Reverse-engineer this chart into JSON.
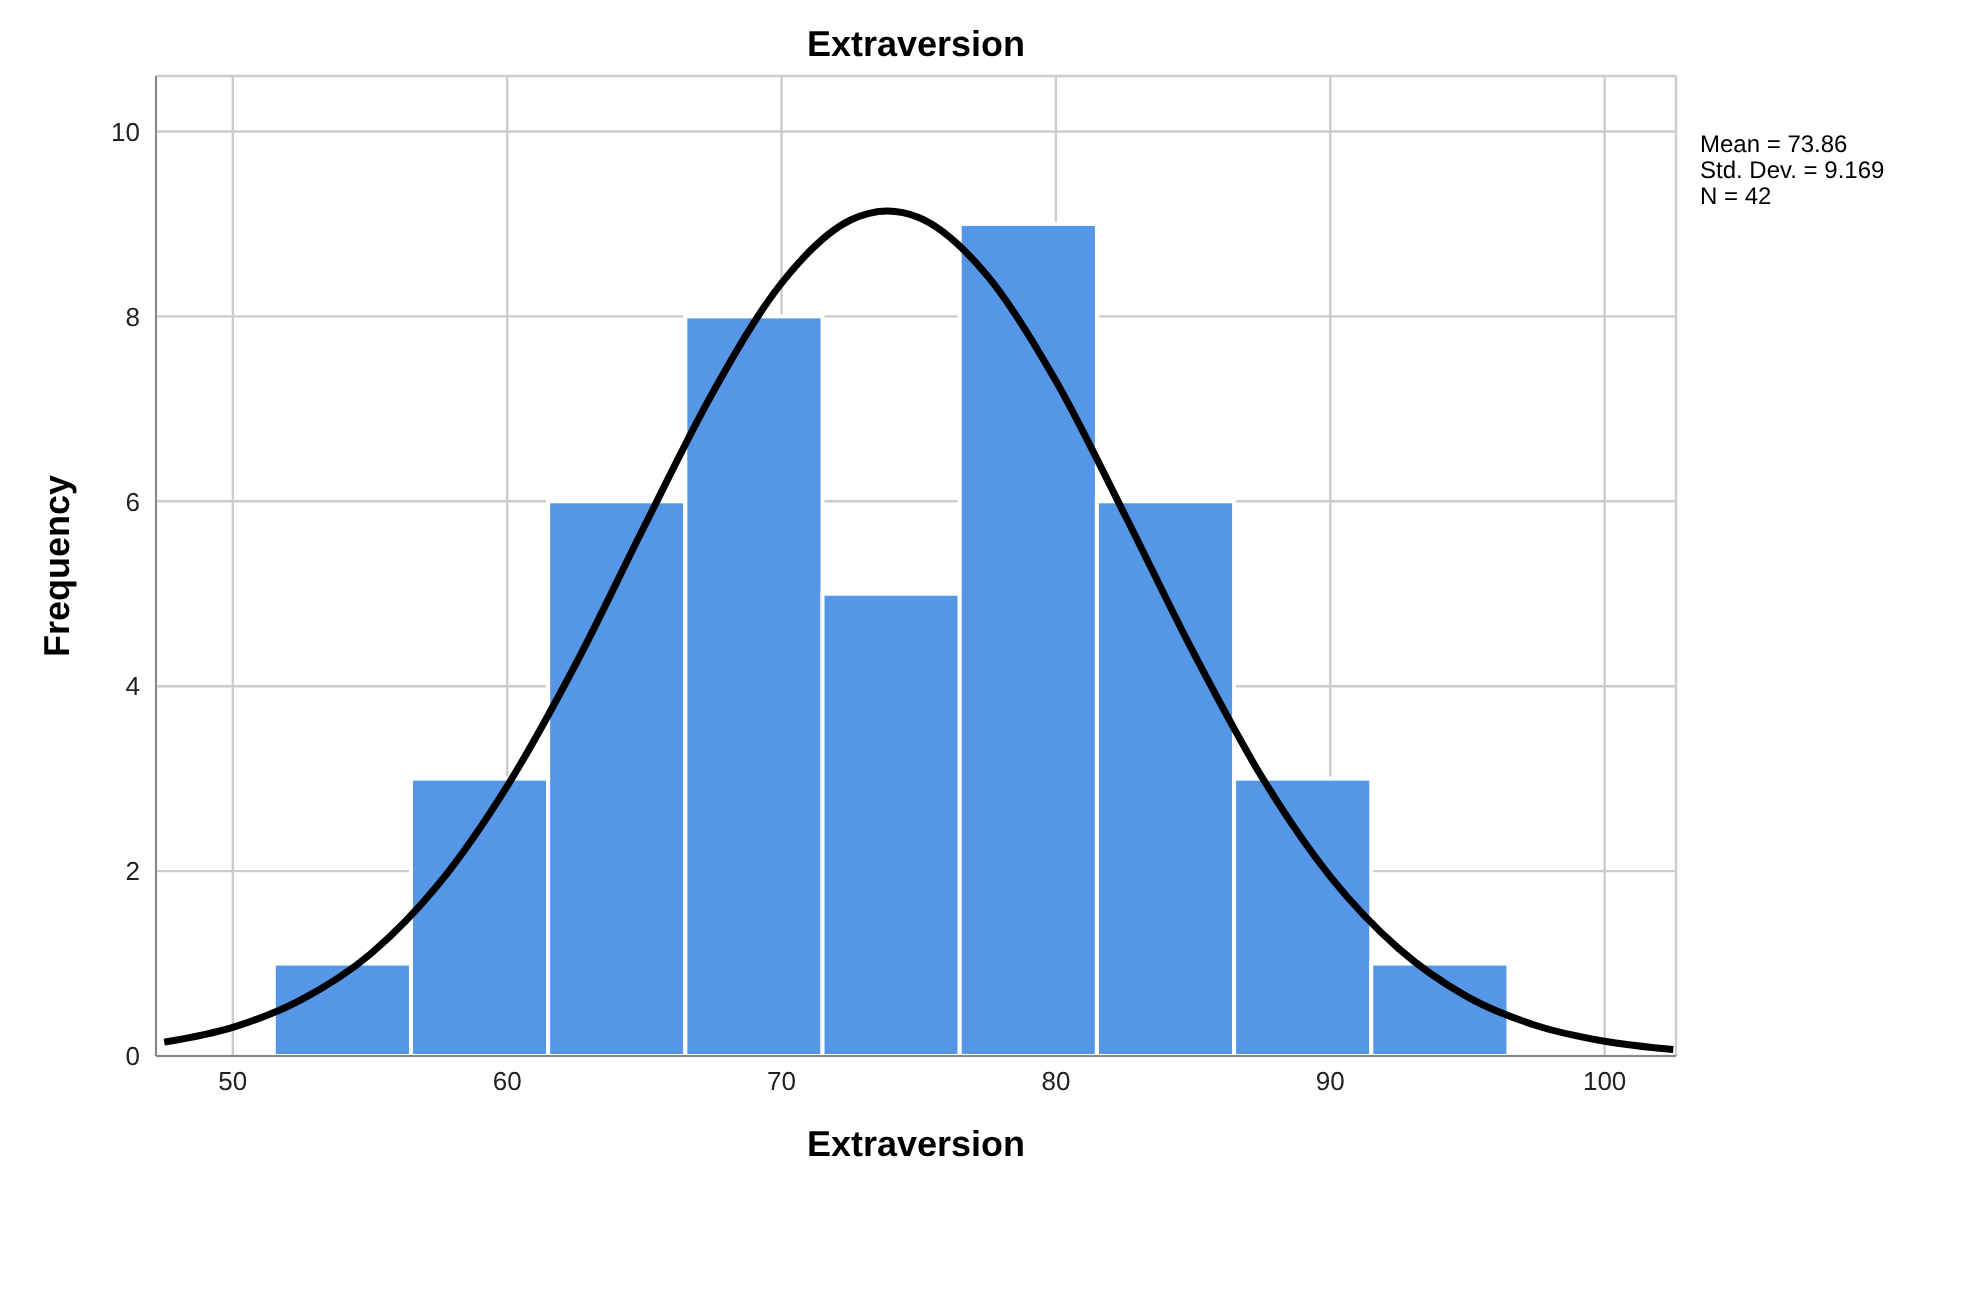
{
  "chart_data": {
    "type": "histogram",
    "title": "Extraversion",
    "xlabel": "Extraversion",
    "ylabel": "Frequency",
    "annotations": [
      "Mean = 73.86",
      "Std. Dev. = 9.169",
      "N = 42"
    ],
    "xlim": [
      47.2,
      102.6
    ],
    "xticks": [
      50,
      60,
      70,
      80,
      90,
      100
    ],
    "ylim": [
      0,
      10.6
    ],
    "yticks": [
      0,
      2,
      4,
      6,
      8,
      10
    ],
    "grid": true,
    "series": [
      {
        "color": "#5596e6",
        "bins": [
          51.5,
          56.5,
          61.5,
          66.5,
          71.5,
          76.5,
          81.5,
          86.5,
          91.5,
          96.5
        ],
        "values": [
          1,
          3,
          6,
          8,
          5,
          9,
          6,
          3,
          1
        ]
      },
      {
        "type": "line",
        "color": "#000000",
        "x": [
          47.5,
          50,
          52.5,
          55,
          57.5,
          60,
          62.5,
          65,
          67.5,
          70,
          72.5,
          73.86,
          75,
          77.5,
          80,
          82.5,
          85,
          87.5,
          90,
          92.5,
          95,
          97.5,
          100,
          102.5
        ],
        "values": [
          0.15,
          0.31,
          0.61,
          1.1,
          1.86,
          2.92,
          4.24,
          5.73,
          7.18,
          8.36,
          9.04,
          9.14,
          9.07,
          8.44,
          7.3,
          5.86,
          4.37,
          3.02,
          1.94,
          1.16,
          0.64,
          0.33,
          0.16,
          0.07
        ]
      }
    ]
  }
}
